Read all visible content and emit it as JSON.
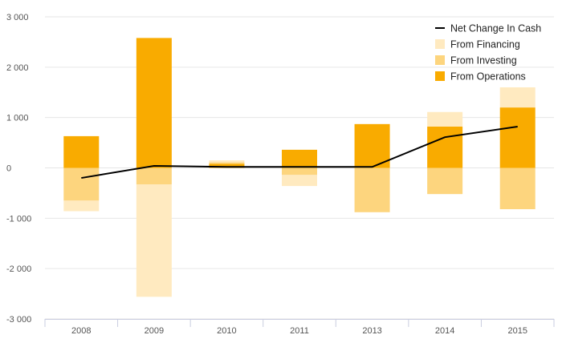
{
  "chart_data": {
    "type": "bar",
    "stacked": true,
    "categories": [
      "2008",
      "2009",
      "2010",
      "2011",
      "2013",
      "2014",
      "2015"
    ],
    "ylim": [
      -3000,
      3000
    ],
    "yticks": [
      3000,
      2000,
      1000,
      0,
      -1000,
      -2000,
      -3000
    ],
    "ytick_labels": [
      "3 000",
      "2 000",
      "1 000",
      "0",
      "-1 000",
      "-2 000",
      "-3 000"
    ],
    "grid": true,
    "legend_position": "top-right",
    "series": [
      {
        "name": "From Operations",
        "color": "#f9ab00",
        "values": [
          630,
          2580,
          80,
          360,
          870,
          820,
          1200
        ]
      },
      {
        "name": "From Investing",
        "color": "#fdd57e",
        "values": [
          -650,
          -330,
          30,
          -140,
          -880,
          -520,
          -820
        ]
      },
      {
        "name": "From Financing",
        "color": "#ffeac0",
        "values": [
          -210,
          -2230,
          40,
          -220,
          0,
          290,
          400
        ]
      },
      {
        "name": "Net Change In Cash",
        "color": "#000000",
        "type": "line",
        "values": [
          -200,
          40,
          20,
          20,
          20,
          610,
          820
        ]
      }
    ],
    "legend_order": [
      "Net Change In Cash",
      "From Financing",
      "From Investing",
      "From Operations"
    ]
  }
}
